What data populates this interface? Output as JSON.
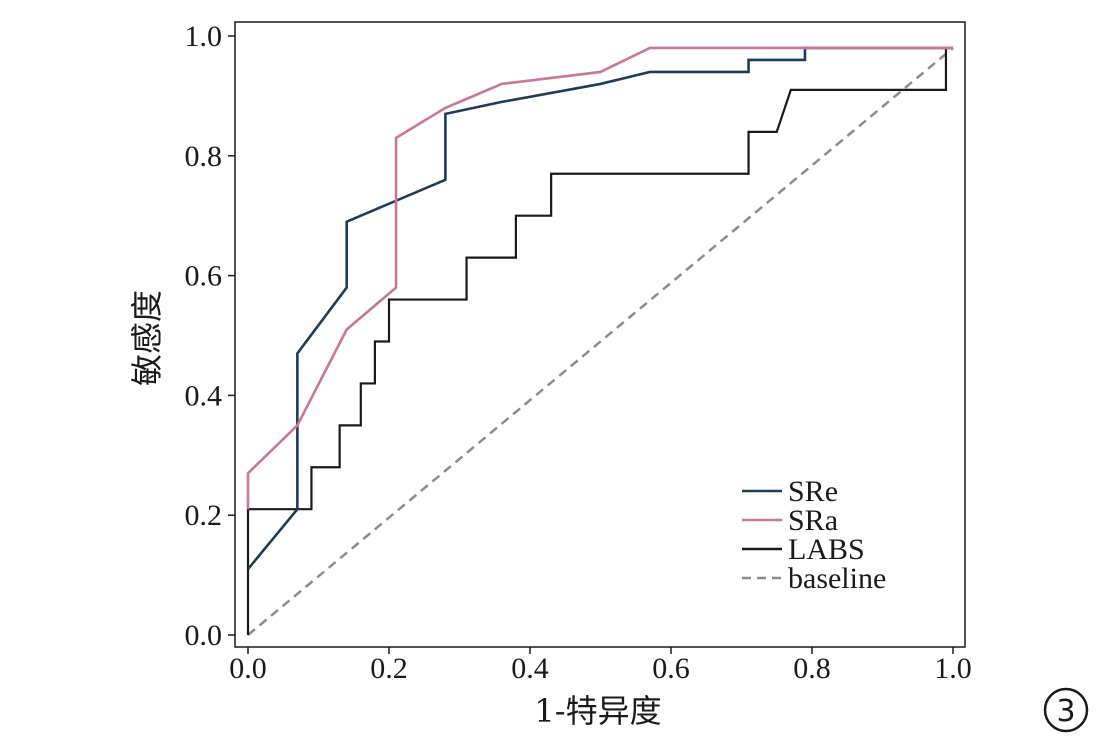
{
  "figure": {
    "panel_badge": "3"
  },
  "chart_data": {
    "type": "line",
    "xlabel": "1-特异度",
    "ylabel": "敏感度",
    "xlim": [
      0.0,
      1.0
    ],
    "ylim": [
      0.0,
      1.0
    ],
    "x_ticks": [
      "0.0",
      "0.2",
      "0.4",
      "0.6",
      "0.8",
      "1.0"
    ],
    "y_ticks": [
      "0.0",
      "0.2",
      "0.4",
      "0.6",
      "0.8",
      "1.0"
    ],
    "grid": false,
    "legend_position": "bottom-right",
    "series": [
      {
        "name": "SRe",
        "color": "#1f3b5c",
        "style": "solid",
        "points": [
          [
            0.0,
            0.11
          ],
          [
            0.07,
            0.21
          ],
          [
            0.07,
            0.47
          ],
          [
            0.14,
            0.58
          ],
          [
            0.14,
            0.69
          ],
          [
            0.28,
            0.76
          ],
          [
            0.28,
            0.87
          ],
          [
            0.36,
            0.89
          ],
          [
            0.5,
            0.92
          ],
          [
            0.57,
            0.94
          ],
          [
            0.71,
            0.94
          ],
          [
            0.71,
            0.96
          ],
          [
            0.79,
            0.96
          ],
          [
            0.79,
            0.98
          ],
          [
            1.0,
            0.98
          ]
        ]
      },
      {
        "name": "SRa",
        "color": "#c8769a",
        "style": "solid",
        "points": [
          [
            0.0,
            0.21
          ],
          [
            0.0,
            0.27
          ],
          [
            0.07,
            0.35
          ],
          [
            0.14,
            0.51
          ],
          [
            0.21,
            0.58
          ],
          [
            0.21,
            0.83
          ],
          [
            0.28,
            0.88
          ],
          [
            0.36,
            0.92
          ],
          [
            0.5,
            0.94
          ],
          [
            0.57,
            0.98
          ],
          [
            1.0,
            0.98
          ]
        ]
      },
      {
        "name": "LABS",
        "color": "#1a1a1a",
        "style": "step",
        "points": [
          [
            0.0,
            0.0
          ],
          [
            0.0,
            0.21
          ],
          [
            0.09,
            0.21
          ],
          [
            0.09,
            0.28
          ],
          [
            0.13,
            0.28
          ],
          [
            0.13,
            0.35
          ],
          [
            0.16,
            0.35
          ],
          [
            0.16,
            0.42
          ],
          [
            0.18,
            0.42
          ],
          [
            0.18,
            0.49
          ],
          [
            0.2,
            0.49
          ],
          [
            0.2,
            0.56
          ],
          [
            0.31,
            0.56
          ],
          [
            0.31,
            0.63
          ],
          [
            0.38,
            0.63
          ],
          [
            0.38,
            0.7
          ],
          [
            0.43,
            0.7
          ],
          [
            0.43,
            0.77
          ],
          [
            0.71,
            0.77
          ],
          [
            0.71,
            0.84
          ],
          [
            0.75,
            0.84
          ],
          [
            0.77,
            0.91
          ],
          [
            0.99,
            0.91
          ],
          [
            0.99,
            0.98
          ]
        ]
      },
      {
        "name": "baseline",
        "color": "#8c8c8c",
        "style": "dashed",
        "points": [
          [
            0.0,
            0.0
          ],
          [
            1.0,
            0.98
          ]
        ]
      }
    ]
  }
}
